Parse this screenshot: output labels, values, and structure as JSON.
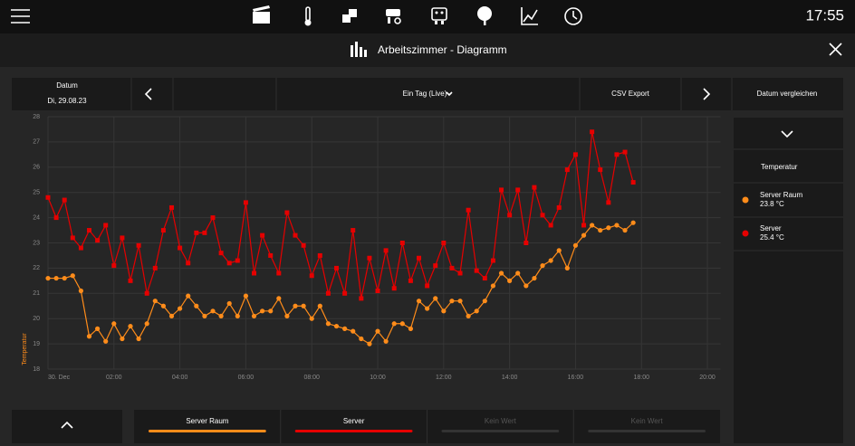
{
  "header": {
    "time": "17:55"
  },
  "title_bar": {
    "title": "Arbeitszimmer - Diagramm"
  },
  "toolbar": {
    "date_label": "Datum",
    "date": "Di, 29.08.23",
    "range": "Ein Tag (Live)",
    "csv": "CSV Export",
    "compare": "Datum vergleichen"
  },
  "chart_data": {
    "type": "line",
    "y_label": "Temperatur",
    "x": [
      0,
      0.25,
      0.5,
      0.75,
      1,
      1.25,
      1.5,
      1.75,
      2,
      2.25,
      2.5,
      2.75,
      3,
      3.25,
      3.5,
      3.75,
      4,
      4.25,
      4.5,
      4.75,
      5,
      5.25,
      5.5,
      5.75,
      6,
      6.25,
      6.5,
      6.75,
      7,
      7.25,
      7.5,
      7.75,
      8,
      8.25,
      8.5,
      8.75,
      9,
      9.25,
      9.5,
      9.75,
      10,
      10.25,
      10.5,
      10.75,
      11,
      11.25,
      11.5,
      11.75,
      12,
      12.25,
      12.5,
      12.75,
      13,
      13.25,
      13.5,
      13.75,
      14,
      14.25,
      14.5,
      14.75,
      15,
      15.25,
      15.5,
      15.75,
      16,
      16.25,
      16.5,
      16.75,
      17,
      17.25,
      17.5,
      17.75
    ],
    "xlim": [
      0,
      20.4
    ],
    "xticks": [
      {
        "value": 0,
        "label": "30. Dec"
      },
      {
        "value": 2,
        "label": "02:00"
      },
      {
        "value": 4,
        "label": "04:00"
      },
      {
        "value": 6,
        "label": "06:00"
      },
      {
        "value": 8,
        "label": "08:00"
      },
      {
        "value": 10,
        "label": "10:00"
      },
      {
        "value": 12,
        "label": "12:00"
      },
      {
        "value": 14,
        "label": "14:00"
      },
      {
        "value": 16,
        "label": "16:00"
      },
      {
        "value": 18,
        "label": "18:00"
      },
      {
        "value": 20,
        "label": "20:00"
      }
    ],
    "ylim": [
      18,
      28
    ],
    "yticks": [
      18,
      19,
      20,
      21,
      22,
      23,
      24,
      25,
      26,
      27,
      28
    ],
    "grid": true,
    "series": [
      {
        "name": "Server Raum",
        "color": "#ff8c1a",
        "marker": "circle",
        "values": [
          21.6,
          21.6,
          21.6,
          21.7,
          21.1,
          19.3,
          19.6,
          19.1,
          19.8,
          19.2,
          19.7,
          19.2,
          19.8,
          20.7,
          20.5,
          20.1,
          20.4,
          20.9,
          20.5,
          20.1,
          20.3,
          20.1,
          20.6,
          20.1,
          20.9,
          20.1,
          20.3,
          20.3,
          20.8,
          20.1,
          20.5,
          20.5,
          20.0,
          20.5,
          19.8,
          19.7,
          19.6,
          19.5,
          19.2,
          19.0,
          19.5,
          19.1,
          19.8,
          19.8,
          19.6,
          20.7,
          20.4,
          20.8,
          20.3,
          20.7,
          20.7,
          20.1,
          20.3,
          20.7,
          21.3,
          21.8,
          21.5,
          21.8,
          21.3,
          21.6,
          22.1,
          22.3,
          22.7,
          22.0,
          22.9,
          23.3,
          23.7,
          23.5,
          23.6,
          23.7,
          23.5,
          23.8
        ]
      },
      {
        "name": "Server",
        "color": "#e60000",
        "marker": "square",
        "values": [
          24.8,
          24.0,
          24.7,
          23.2,
          22.8,
          23.5,
          23.1,
          23.7,
          22.1,
          23.2,
          21.5,
          22.9,
          21.0,
          22.0,
          23.5,
          24.4,
          22.8,
          22.2,
          23.4,
          23.4,
          24.0,
          22.6,
          22.2,
          22.3,
          24.6,
          21.8,
          23.3,
          22.5,
          21.8,
          24.2,
          23.3,
          22.9,
          21.7,
          22.5,
          21.0,
          22.0,
          21.0,
          23.5,
          20.8,
          22.4,
          21.1,
          22.7,
          21.2,
          23.0,
          21.5,
          22.4,
          21.3,
          22.1,
          23.0,
          22.0,
          21.8,
          24.3,
          21.9,
          21.6,
          22.3,
          25.1,
          24.1,
          25.1,
          23.0,
          25.2,
          24.1,
          23.7,
          24.4,
          25.9,
          26.5,
          23.7,
          27.4,
          25.9,
          24.6,
          26.5,
          26.6,
          25.4
        ]
      }
    ]
  },
  "sidebar": {
    "heading": "Temperatur",
    "entries": [
      {
        "name": "Server Raum",
        "value": "23.8 °C"
      },
      {
        "name": "Server",
        "value": "25.4 °C"
      }
    ]
  },
  "tabs": [
    "Server Raum",
    "Server",
    "Kein Wert",
    "Kein Wert"
  ]
}
